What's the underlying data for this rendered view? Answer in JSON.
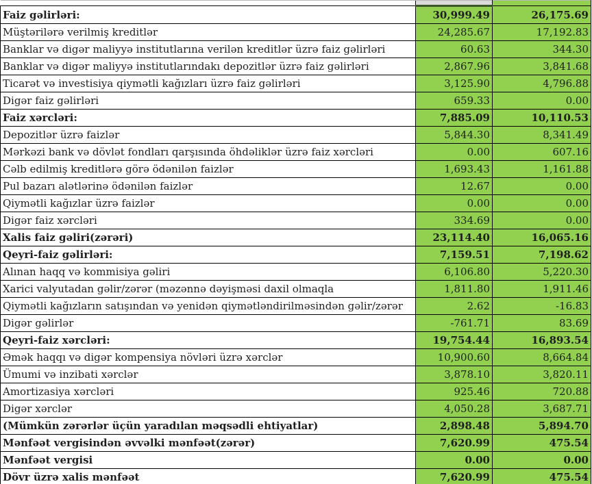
{
  "colors": {
    "green": "#92D050",
    "gray_cell": "#D9D9D9",
    "dark_green_border": "#375623",
    "grid": "#000000",
    "text": "#1F1F1F"
  },
  "table": {
    "columns": [
      "label",
      "value_col_1",
      "value_col_2"
    ],
    "rows": [
      {
        "label": "Faiz gəlirləri:",
        "col1": "30,999.49",
        "col2": "26,175.69",
        "bold": true
      },
      {
        "label": "Müştərilərə verilmiş kreditlər",
        "col1": "24,285.67",
        "col2": "17,192.83",
        "bold": false
      },
      {
        "label": "Banklar və digər maliyyə institutlarına verilən kreditlər üzrə faiz gəlirləri",
        "col1": "60.63",
        "col2": "344.30",
        "bold": false
      },
      {
        "label": "Banklar və digər maliyyə institutlarındakı depozitlər üzrə faiz gəlirləri",
        "col1": "2,867.96",
        "col2": "3,841.68",
        "bold": false
      },
      {
        "label": "Ticarət və investisiya qiymətli kağızları üzrə faiz gəlirləri",
        "col1": "3,125.90",
        "col2": "4,796.88",
        "bold": false
      },
      {
        "label": "Digər faiz gəlirləri",
        "col1": "659.33",
        "col2": "0.00",
        "bold": false
      },
      {
        "label": "Faiz xərcləri:",
        "col1": "7,885.09",
        "col2": "10,110.53",
        "bold": true
      },
      {
        "label": "Depozitlər üzrə faizlər",
        "col1": "5,844.30",
        "col2": "8,341.49",
        "bold": false
      },
      {
        "label": "Mərkəzi bank və dövlət fondları qarşısında öhdəliklər üzrə faiz xərcləri",
        "col1": "0.00",
        "col2": "607.16",
        "bold": false
      },
      {
        "label": "Cəlb edilmiş kreditlərə görə ödənilən faizlər",
        "col1": "1,693.43",
        "col2": "1,161.88",
        "bold": false
      },
      {
        "label": "Pul bazarı alətlərinə ödənilən faizlər",
        "col1": "12.67",
        "col2": "0.00",
        "bold": false
      },
      {
        "label": "Qiymətli kağızlar üzrə faizlər",
        "col1": "0.00",
        "col2": "0.00",
        "bold": false
      },
      {
        "label": "Digər faiz xərcləri",
        "col1": "334.69",
        "col2": "0.00",
        "bold": false
      },
      {
        "label": "Xalis faiz gəliri(zərəri)",
        "col1": "23,114.40",
        "col2": "16,065.16",
        "bold": true
      },
      {
        "label": "Qeyri-faiz gəlirləri:",
        "col1": "7,159.51",
        "col2": "7,198.62",
        "bold": true
      },
      {
        "label": "Alınan haqq və kommisiya gəliri",
        "col1": "6,106.80",
        "col2": "5,220.30",
        "bold": false
      },
      {
        "label": "Xarici valyutadan gəlir/zərər (məzənnə dəyişməsi daxil olmaqla",
        "col1": "1,811.80",
        "col2": "1,911.46",
        "bold": false
      },
      {
        "label": "Qiymətli kağızların satışından və yenidən qiymətləndirilməsindən gəlir/zərər",
        "col1": "2.62",
        "col2": "-16.83",
        "bold": false
      },
      {
        "label": "Digər gəlirlər",
        "col1": "-761.71",
        "col2": "83.69",
        "bold": false
      },
      {
        "label": "Qeyri-faiz xərcləri:",
        "col1": "19,754.44",
        "col2": "16,893.54",
        "bold": true
      },
      {
        "label": "Əmək haqqı və digər kompensiya növləri üzrə xərclər",
        "col1": "10,900.60",
        "col2": "8,664.84",
        "bold": false
      },
      {
        "label": "Ümumi və inzibati xərclər",
        "col1": "3,878.10",
        "col2": "3,820.11",
        "bold": false
      },
      {
        "label": "Amortizasiya xərcləri",
        "col1": "925.46",
        "col2": "720.88",
        "bold": false
      },
      {
        "label": "Digər xərclər",
        "col1": "4,050.28",
        "col2": "3,687.71",
        "bold": false
      },
      {
        "label": "(Mümkün zərərlər üçün yaradılan məqsədli ehtiyatlar)",
        "col1": "2,898.48",
        "col2": "5,894.70",
        "bold": true
      },
      {
        "label": "Mənfəət vergisindən əvvəlki mənfəət(zərər)",
        "col1": "7,620.99",
        "col2": "475.54",
        "bold": true
      },
      {
        "label": "Mənfəət vergisi",
        "col1": "0.00",
        "col2": "0.00",
        "bold": true
      },
      {
        "label": "Dövr üzrə xalis mənfəət",
        "col1": "7,620.99",
        "col2": "475.54",
        "bold": true
      }
    ]
  }
}
